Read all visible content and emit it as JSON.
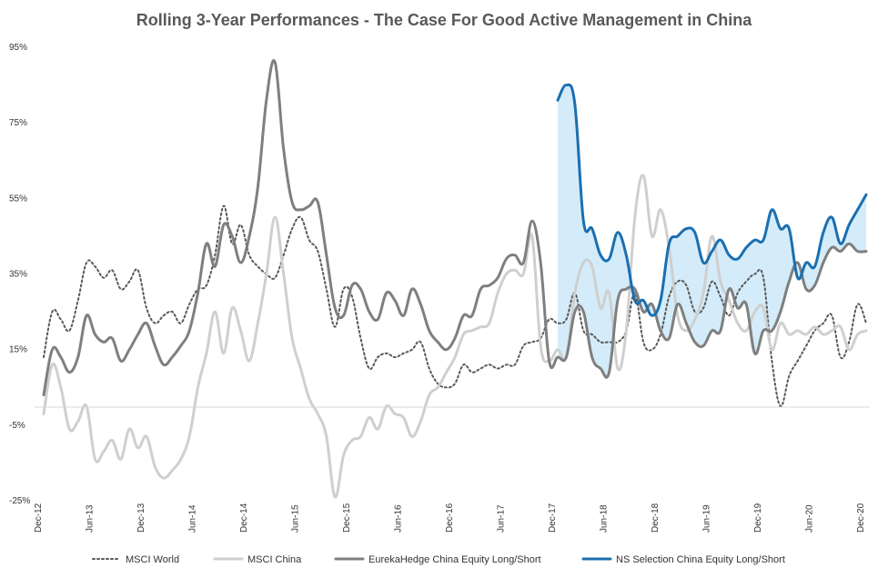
{
  "chart_data": {
    "type": "line",
    "title": "Rolling 3-Year Performances - The Case For Good Active Management in China",
    "xlabel": "",
    "ylabel": "",
    "ylim": [
      -25,
      95
    ],
    "yticks": [
      "95%",
      "75%",
      "55%",
      "35%",
      "15%",
      "-5%",
      "-25%"
    ],
    "ytick_values": [
      95,
      75,
      55,
      35,
      15,
      -5,
      -25
    ],
    "xticks": [
      "Dec-12",
      "Jun-13",
      "Dec-13",
      "Jun-14",
      "Dec-14",
      "Jun-15",
      "Dec-15",
      "Jun-16",
      "Dec-16",
      "Jun-17",
      "Dec-17",
      "Jun-18",
      "Dec-18",
      "Jun-19",
      "Dec-19",
      "Jun-20",
      "Dec-20"
    ],
    "xtick_months": [
      0,
      6,
      12,
      18,
      24,
      30,
      36,
      42,
      48,
      54,
      60,
      66,
      72,
      78,
      84,
      90,
      96
    ],
    "x_start": "Dec-12",
    "x_end": "Dec-20",
    "grid": false,
    "legend_position": "bottom",
    "shaded_area": {
      "between": [
        "NS Selection China Equity Long/Short",
        "EurekaHedge China Equity Long/Short"
      ],
      "color": "#d4ecfa"
    },
    "series": [
      {
        "name": "MSCI World",
        "color": "#595959",
        "style": "dotted",
        "x": [
          0,
          1,
          2,
          3,
          4,
          5,
          6,
          7,
          8,
          9,
          10,
          11,
          12,
          13,
          14,
          15,
          16,
          17,
          18,
          19,
          20,
          21,
          22,
          23,
          24,
          25,
          26,
          27,
          28,
          29,
          30,
          31,
          32,
          33,
          34,
          35,
          36,
          37,
          38,
          39,
          40,
          41,
          42,
          43,
          44,
          45,
          46,
          47,
          48,
          49,
          50,
          51,
          52,
          53,
          54,
          55,
          56,
          57,
          58,
          59,
          60,
          61,
          62,
          63,
          64,
          65,
          66,
          67,
          68,
          69,
          70,
          71,
          72,
          73,
          74,
          75,
          76,
          77,
          78,
          79,
          80,
          81,
          82,
          83,
          84,
          85,
          86,
          87,
          88,
          89,
          90,
          91,
          92,
          93,
          94,
          95,
          96
        ],
        "values": [
          13,
          25,
          23,
          20,
          28,
          38,
          37,
          34,
          36,
          31,
          33,
          36,
          26,
          22,
          24,
          25,
          22,
          27,
          31,
          32,
          40,
          53,
          43,
          48,
          40,
          37,
          35,
          34,
          40,
          47,
          50,
          44,
          41,
          31,
          21,
          31,
          29,
          18,
          10,
          13,
          14,
          13,
          14,
          15,
          17,
          10,
          6,
          5,
          6,
          11,
          9,
          10,
          11,
          10,
          11,
          11,
          16,
          17,
          18,
          23,
          22,
          23,
          30,
          20,
          19,
          17,
          17,
          17,
          20,
          30,
          17,
          15,
          19,
          29,
          33,
          32,
          25,
          26,
          33,
          29,
          24,
          30,
          33,
          35,
          34,
          12,
          0,
          8,
          12,
          16,
          20,
          22,
          24,
          13,
          17,
          27,
          22
        ]
      },
      {
        "name": "MSCI China",
        "color": "#cfcfcf",
        "style": "solid",
        "x": [
          0,
          1,
          2,
          3,
          4,
          5,
          6,
          7,
          8,
          9,
          10,
          11,
          12,
          13,
          14,
          15,
          16,
          17,
          18,
          19,
          20,
          21,
          22,
          23,
          24,
          25,
          26,
          27,
          28,
          29,
          30,
          31,
          32,
          33,
          34,
          35,
          36,
          37,
          38,
          39,
          40,
          41,
          42,
          43,
          44,
          45,
          46,
          47,
          48,
          49,
          50,
          51,
          52,
          53,
          54,
          55,
          56,
          57,
          58,
          59,
          60,
          61,
          62,
          63,
          64,
          65,
          66,
          67,
          68,
          69,
          70,
          71,
          72,
          73,
          74,
          75,
          76,
          77,
          78,
          79,
          80,
          81,
          82,
          83,
          84,
          85,
          86,
          87,
          88,
          89,
          90,
          91,
          92,
          93,
          94,
          95,
          96
        ],
        "values": [
          -2,
          11,
          5,
          -6,
          -4,
          0,
          -14,
          -12,
          -9,
          -14,
          -6,
          -11,
          -8,
          -16,
          -19,
          -17,
          -14,
          -8,
          5,
          14,
          25,
          14,
          26,
          20,
          12,
          22,
          35,
          50,
          35,
          18,
          10,
          2,
          -2,
          -8,
          -24,
          -13,
          -9,
          -8,
          -3,
          -6,
          0,
          -2,
          -3,
          -8,
          -4,
          3,
          5,
          9,
          13,
          19,
          20,
          21,
          22,
          30,
          35,
          36,
          35,
          45,
          16,
          12,
          15,
          13,
          30,
          38,
          37,
          26,
          30,
          10,
          20,
          50,
          61,
          45,
          52,
          42,
          24,
          20,
          23,
          30,
          45,
          33,
          28,
          22,
          20,
          25,
          26,
          15,
          22,
          19,
          20,
          19,
          21,
          19,
          20,
          21,
          15,
          19,
          20
        ]
      },
      {
        "name": "EurekaHedge China Equity Long/Short",
        "color": "#7f7f7f",
        "style": "solid",
        "x": [
          0,
          1,
          2,
          3,
          4,
          5,
          6,
          7,
          8,
          9,
          10,
          11,
          12,
          13,
          14,
          15,
          16,
          17,
          18,
          19,
          20,
          21,
          22,
          23,
          24,
          25,
          26,
          27,
          28,
          29,
          30,
          31,
          32,
          33,
          34,
          35,
          36,
          37,
          38,
          39,
          40,
          41,
          42,
          43,
          44,
          45,
          46,
          47,
          48,
          49,
          50,
          51,
          52,
          53,
          54,
          55,
          56,
          57,
          58,
          59,
          60,
          61,
          62,
          63,
          64,
          65,
          66,
          67,
          68,
          69,
          70,
          71,
          72,
          73,
          74,
          75,
          76,
          77,
          78,
          79,
          80,
          81,
          82,
          83,
          84,
          85,
          86,
          87,
          88,
          89,
          90,
          91,
          92,
          93,
          94,
          95,
          96
        ],
        "values": [
          3,
          15,
          13,
          9,
          13,
          24,
          19,
          17,
          18,
          12,
          15,
          19,
          22,
          16,
          11,
          13,
          16,
          20,
          30,
          43,
          37,
          48,
          45,
          38,
          45,
          58,
          81,
          91,
          68,
          54,
          52,
          53,
          54,
          40,
          26,
          24,
          32,
          31,
          25,
          23,
          30,
          28,
          24,
          31,
          27,
          20,
          17,
          15,
          18,
          24,
          24,
          31,
          32,
          34,
          39,
          40,
          38,
          49,
          38,
          12,
          13,
          13,
          25,
          25,
          13,
          10,
          9,
          28,
          31,
          31,
          25,
          27,
          20,
          18,
          27,
          22,
          17,
          16,
          20,
          20,
          31,
          26,
          27,
          14,
          20,
          20,
          25,
          33,
          38,
          31,
          32,
          38,
          42,
          41,
          43,
          41,
          41
        ]
      },
      {
        "name": "NS Selection China Equity Long/Short",
        "color": "#1a6fb0",
        "style": "solid",
        "x": [
          60,
          61,
          62,
          63,
          64,
          65,
          66,
          67,
          68,
          69,
          70,
          71,
          72,
          73,
          74,
          75,
          76,
          77,
          78,
          79,
          80,
          81,
          82,
          83,
          84,
          85,
          86,
          87,
          88,
          89,
          90,
          91,
          92,
          93,
          94,
          95,
          96
        ],
        "values": [
          81,
          85,
          80,
          49,
          47,
          40,
          39,
          46,
          40,
          28,
          28,
          24,
          28,
          43,
          45,
          47,
          46,
          38,
          41,
          44,
          40,
          39,
          42,
          44,
          44,
          52,
          47,
          47,
          34,
          38,
          37,
          46,
          50,
          43,
          48,
          52,
          56
        ]
      }
    ]
  }
}
